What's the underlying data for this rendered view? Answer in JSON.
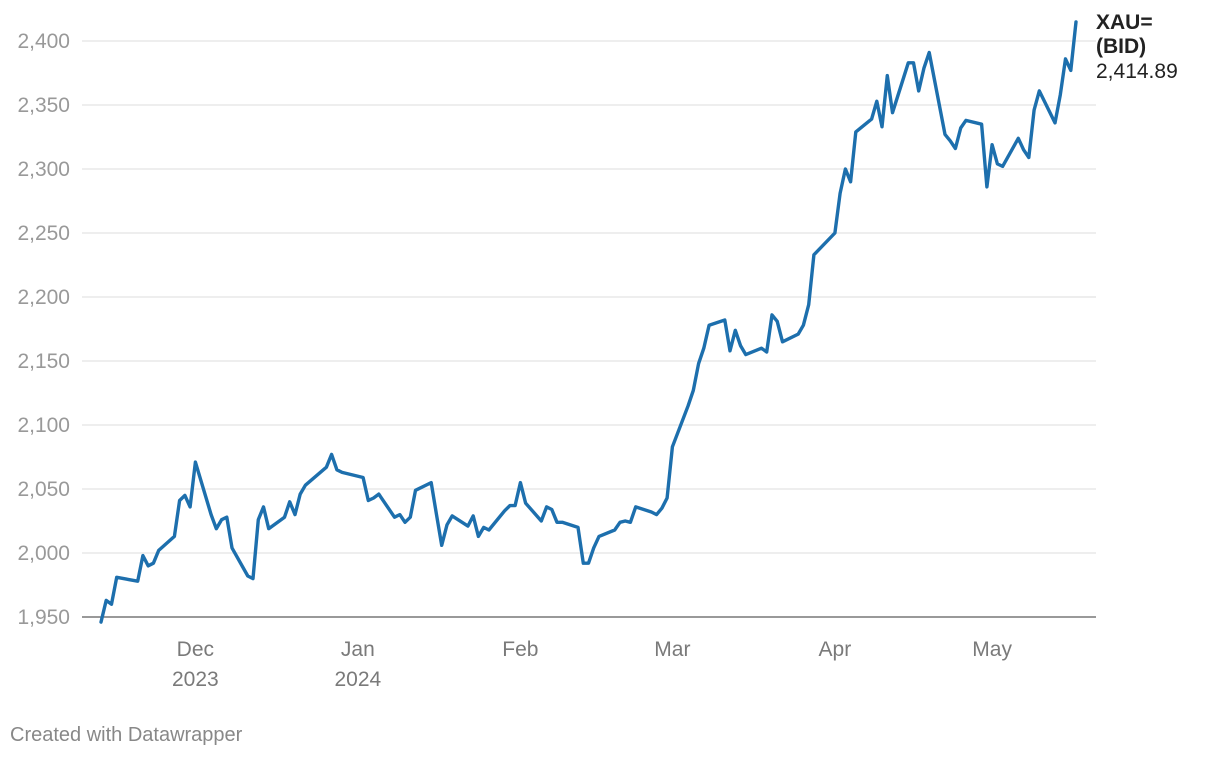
{
  "chart_data": {
    "type": "line",
    "x_axis": {
      "ticks": [
        {
          "date": "2023-12-01",
          "line1": "Dec",
          "line2": "2023"
        },
        {
          "date": "2024-01-01",
          "line1": "Jan",
          "line2": "2024"
        },
        {
          "date": "2024-02-01",
          "line1": "Feb",
          "line2": ""
        },
        {
          "date": "2024-03-01",
          "line1": "Mar",
          "line2": ""
        },
        {
          "date": "2024-04-01",
          "line1": "Apr",
          "line2": ""
        },
        {
          "date": "2024-05-01",
          "line1": "May",
          "line2": ""
        }
      ],
      "range": [
        "2023-11-13",
        "2024-05-20"
      ]
    },
    "y_axis": {
      "ticks": [
        1950,
        2000,
        2050,
        2100,
        2150,
        2200,
        2250,
        2300,
        2350,
        2400
      ],
      "tick_labels": [
        "1,950",
        "2,000",
        "2,050",
        "2,100",
        "2,150",
        "2,200",
        "2,250",
        "2,300",
        "2,350",
        "2,400"
      ],
      "ylim": [
        1950,
        2410
      ]
    },
    "grid": true,
    "series": [
      {
        "name": "XAU= (BID)",
        "color": "#1d6fad",
        "end_label_lines": [
          "XAU=",
          "(BID)"
        ],
        "end_value_label": "2,414.89",
        "points": [
          [
            "2023-11-13",
            1946
          ],
          [
            "2023-11-14",
            1963
          ],
          [
            "2023-11-15",
            1960
          ],
          [
            "2023-11-16",
            1981
          ],
          [
            "2023-11-20",
            1978
          ],
          [
            "2023-11-21",
            1998
          ],
          [
            "2023-11-22",
            1990
          ],
          [
            "2023-11-23",
            1992
          ],
          [
            "2023-11-24",
            2002
          ],
          [
            "2023-11-27",
            2013
          ],
          [
            "2023-11-28",
            2041
          ],
          [
            "2023-11-29",
            2045
          ],
          [
            "2023-11-30",
            2036
          ],
          [
            "2023-12-01",
            2071
          ],
          [
            "2023-12-04",
            2030
          ],
          [
            "2023-12-05",
            2019
          ],
          [
            "2023-12-06",
            2026
          ],
          [
            "2023-12-07",
            2028
          ],
          [
            "2023-12-08",
            2004
          ],
          [
            "2023-12-11",
            1982
          ],
          [
            "2023-12-12",
            1980
          ],
          [
            "2023-12-13",
            2026
          ],
          [
            "2023-12-14",
            2036
          ],
          [
            "2023-12-15",
            2019
          ],
          [
            "2023-12-18",
            2028
          ],
          [
            "2023-12-19",
            2040
          ],
          [
            "2023-12-20",
            2030
          ],
          [
            "2023-12-21",
            2046
          ],
          [
            "2023-12-22",
            2053
          ],
          [
            "2023-12-26",
            2067
          ],
          [
            "2023-12-27",
            2077
          ],
          [
            "2023-12-28",
            2065
          ],
          [
            "2023-12-29",
            2063
          ],
          [
            "2024-01-02",
            2059
          ],
          [
            "2024-01-03",
            2041
          ],
          [
            "2024-01-04",
            2043
          ],
          [
            "2024-01-05",
            2046
          ],
          [
            "2024-01-08",
            2028
          ],
          [
            "2024-01-09",
            2030
          ],
          [
            "2024-01-10",
            2024
          ],
          [
            "2024-01-11",
            2028
          ],
          [
            "2024-01-12",
            2049
          ],
          [
            "2024-01-15",
            2055
          ],
          [
            "2024-01-16",
            2030
          ],
          [
            "2024-01-17",
            2006
          ],
          [
            "2024-01-18",
            2022
          ],
          [
            "2024-01-19",
            2029
          ],
          [
            "2024-01-22",
            2021
          ],
          [
            "2024-01-23",
            2029
          ],
          [
            "2024-01-24",
            2013
          ],
          [
            "2024-01-25",
            2020
          ],
          [
            "2024-01-26",
            2018
          ],
          [
            "2024-01-29",
            2033
          ],
          [
            "2024-01-30",
            2037
          ],
          [
            "2024-01-31",
            2037
          ],
          [
            "2024-02-01",
            2055
          ],
          [
            "2024-02-02",
            2039
          ],
          [
            "2024-02-05",
            2025
          ],
          [
            "2024-02-06",
            2036
          ],
          [
            "2024-02-07",
            2034
          ],
          [
            "2024-02-08",
            2024
          ],
          [
            "2024-02-09",
            2024
          ],
          [
            "2024-02-12",
            2020
          ],
          [
            "2024-02-13",
            1992
          ],
          [
            "2024-02-14",
            1992
          ],
          [
            "2024-02-15",
            2004
          ],
          [
            "2024-02-16",
            2013
          ],
          [
            "2024-02-19",
            2018
          ],
          [
            "2024-02-20",
            2024
          ],
          [
            "2024-02-21",
            2025
          ],
          [
            "2024-02-22",
            2024
          ],
          [
            "2024-02-23",
            2036
          ],
          [
            "2024-02-26",
            2032
          ],
          [
            "2024-02-27",
            2030
          ],
          [
            "2024-02-28",
            2035
          ],
          [
            "2024-02-29",
            2043
          ],
          [
            "2024-03-01",
            2083
          ],
          [
            "2024-03-04",
            2115
          ],
          [
            "2024-03-05",
            2127
          ],
          [
            "2024-03-06",
            2148
          ],
          [
            "2024-03-07",
            2160
          ],
          [
            "2024-03-08",
            2178
          ],
          [
            "2024-03-11",
            2182
          ],
          [
            "2024-03-12",
            2158
          ],
          [
            "2024-03-13",
            2174
          ],
          [
            "2024-03-14",
            2162
          ],
          [
            "2024-03-15",
            2155
          ],
          [
            "2024-03-18",
            2160
          ],
          [
            "2024-03-19",
            2157
          ],
          [
            "2024-03-20",
            2186
          ],
          [
            "2024-03-21",
            2181
          ],
          [
            "2024-03-22",
            2165
          ],
          [
            "2024-03-25",
            2171
          ],
          [
            "2024-03-26",
            2178
          ],
          [
            "2024-03-27",
            2194
          ],
          [
            "2024-03-28",
            2233
          ],
          [
            "2024-04-01",
            2250
          ],
          [
            "2024-04-02",
            2281
          ],
          [
            "2024-04-03",
            2300
          ],
          [
            "2024-04-04",
            2290
          ],
          [
            "2024-04-05",
            2329
          ],
          [
            "2024-04-08",
            2339
          ],
          [
            "2024-04-09",
            2353
          ],
          [
            "2024-04-10",
            2333
          ],
          [
            "2024-04-11",
            2373
          ],
          [
            "2024-04-12",
            2344
          ],
          [
            "2024-04-15",
            2383
          ],
          [
            "2024-04-16",
            2383
          ],
          [
            "2024-04-17",
            2361
          ],
          [
            "2024-04-18",
            2379
          ],
          [
            "2024-04-19",
            2391
          ],
          [
            "2024-04-22",
            2327
          ],
          [
            "2024-04-23",
            2322
          ],
          [
            "2024-04-24",
            2316
          ],
          [
            "2024-04-25",
            2332
          ],
          [
            "2024-04-26",
            2338
          ],
          [
            "2024-04-29",
            2335
          ],
          [
            "2024-04-30",
            2286
          ],
          [
            "2024-05-01",
            2319
          ],
          [
            "2024-05-02",
            2304
          ],
          [
            "2024-05-03",
            2302
          ],
          [
            "2024-05-06",
            2324
          ],
          [
            "2024-05-07",
            2315
          ],
          [
            "2024-05-08",
            2309
          ],
          [
            "2024-05-09",
            2346
          ],
          [
            "2024-05-10",
            2361
          ],
          [
            "2024-05-13",
            2336
          ],
          [
            "2024-05-14",
            2358
          ],
          [
            "2024-05-15",
            2386
          ],
          [
            "2024-05-16",
            2377
          ],
          [
            "2024-05-17",
            2414.89
          ]
        ]
      }
    ]
  },
  "footer": {
    "credit": "Created with Datawrapper"
  }
}
